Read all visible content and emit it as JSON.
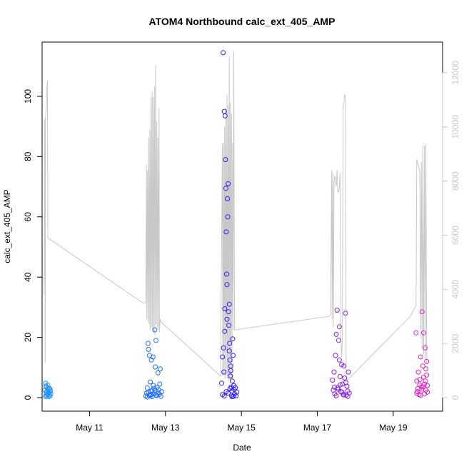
{
  "chart_data": {
    "type": "scatter",
    "title": "ATOM4 Northbound calc_ext_405_AMP",
    "xlabel": "Date",
    "ylabel": "calc_ext_405_AMP",
    "x_ticks": [
      "May 11",
      "May 13",
      "May 15",
      "May 17",
      "May 19"
    ],
    "x_tick_days": [
      11,
      13,
      15,
      17,
      19
    ],
    "xlim": [
      9.75,
      20.3
    ],
    "ylim": [
      -4.5,
      118
    ],
    "y_ticks": [
      0,
      20,
      40,
      60,
      80,
      100
    ],
    "y2lim": [
      -500,
      13130
    ],
    "y2_ticks": [
      0,
      2000,
      4000,
      6000,
      8000,
      10000,
      12000
    ],
    "grid": false,
    "legend": "none",
    "colors": {
      "axis": "#000000",
      "secondary_axis": "#c8c8c8",
      "secondary_line": "#c8c8c8"
    },
    "series": [
      {
        "color": "#1e90ff",
        "points": [
          [
            9.82,
            2.5
          ],
          [
            9.84,
            4.8
          ],
          [
            9.85,
            3.9
          ],
          [
            9.86,
            1.8
          ],
          [
            9.87,
            0.6
          ],
          [
            9.88,
            2.2
          ],
          [
            9.89,
            1.1
          ],
          [
            9.9,
            3.2
          ],
          [
            9.91,
            0.3
          ],
          [
            9.92,
            1.5
          ],
          [
            9.93,
            2.8
          ],
          [
            9.94,
            0.9
          ],
          [
            9.95,
            1.9
          ],
          [
            9.96,
            0.5
          ],
          [
            9.97,
            2.4
          ],
          [
            9.98,
            1.2
          ],
          [
            9.83,
            0.4
          ],
          [
            9.86,
            3.5
          ],
          [
            9.9,
            4.2
          ],
          [
            9.95,
            3.0
          ]
        ]
      },
      {
        "color": "#1e6eff",
        "points": [
          [
            12.48,
            0.5
          ],
          [
            12.5,
            1.5
          ],
          [
            12.52,
            3.2
          ],
          [
            12.54,
            18.0
          ],
          [
            12.55,
            16.0
          ],
          [
            12.57,
            0.8
          ],
          [
            12.58,
            14.0
          ],
          [
            12.6,
            5.2
          ],
          [
            12.62,
            2.1
          ],
          [
            12.63,
            12.5
          ],
          [
            12.65,
            0.3
          ],
          [
            12.67,
            13.5
          ],
          [
            12.68,
            4.0
          ],
          [
            12.7,
            1.2
          ],
          [
            12.72,
            22.5
          ],
          [
            12.73,
            10.2
          ],
          [
            12.75,
            19.0
          ],
          [
            12.77,
            0.7
          ],
          [
            12.78,
            3.4
          ],
          [
            12.8,
            8.2
          ],
          [
            12.82,
            2.6
          ],
          [
            12.84,
            1.1
          ],
          [
            12.86,
            9.5
          ],
          [
            12.88,
            0.4
          ],
          [
            12.9,
            2.0
          ],
          [
            12.55,
            1.8
          ],
          [
            12.6,
            0.6
          ],
          [
            12.65,
            2.5
          ],
          [
            12.7,
            3.1
          ],
          [
            12.75,
            0.9
          ],
          [
            12.8,
            1.6
          ],
          [
            12.85,
            4.5
          ],
          [
            12.52,
            0.2
          ],
          [
            12.62,
            1.0
          ],
          [
            12.72,
            2.3
          ]
        ]
      },
      {
        "color": "#2f1aff",
        "points": [
          [
            14.52,
            114.5
          ],
          [
            14.48,
            4.8
          ],
          [
            14.5,
            13.5
          ],
          [
            14.53,
            16.5
          ],
          [
            14.54,
            8.5
          ],
          [
            14.55,
            95.0
          ],
          [
            14.56,
            29.5
          ],
          [
            14.57,
            93.5
          ],
          [
            14.58,
            79.0
          ],
          [
            14.59,
            69.5
          ],
          [
            14.6,
            55.0
          ],
          [
            14.61,
            41.0
          ],
          [
            14.62,
            37.5
          ],
          [
            14.63,
            66.0
          ],
          [
            14.64,
            60.0
          ],
          [
            14.65,
            71.0
          ],
          [
            14.66,
            28.5
          ],
          [
            14.67,
            24.0
          ],
          [
            14.68,
            31.0
          ],
          [
            14.69,
            18.0
          ],
          [
            14.7,
            12.5
          ],
          [
            14.71,
            7.2
          ],
          [
            14.72,
            10.5
          ],
          [
            14.73,
            3.5
          ],
          [
            14.74,
            0.8
          ],
          [
            14.75,
            2.2
          ],
          [
            14.76,
            5.5
          ],
          [
            14.77,
            19.5
          ],
          [
            14.78,
            14.0
          ],
          [
            14.79,
            0.4
          ],
          [
            14.8,
            2.8
          ],
          [
            14.82,
            1.2
          ],
          [
            14.84,
            3.3
          ],
          [
            14.86,
            0.6
          ],
          [
            14.88,
            1.8
          ],
          [
            14.5,
            1.0
          ],
          [
            14.55,
            0.5
          ],
          [
            14.6,
            2.0
          ],
          [
            14.65,
            1.5
          ],
          [
            14.7,
            3.0
          ],
          [
            14.75,
            0.3
          ],
          [
            14.8,
            4.0
          ],
          [
            14.56,
            22.0
          ],
          [
            14.62,
            26.0
          ],
          [
            14.68,
            15.5
          ],
          [
            14.72,
            9.0
          ]
        ]
      },
      {
        "color": "#8a1ee8",
        "points": [
          [
            17.4,
            5.8
          ],
          [
            17.42,
            2.5
          ],
          [
            17.44,
            8.5
          ],
          [
            17.46,
            1.2
          ],
          [
            17.48,
            14.0
          ],
          [
            17.5,
            21.0
          ],
          [
            17.52,
            29.0
          ],
          [
            17.54,
            3.3
          ],
          [
            17.56,
            19.0
          ],
          [
            17.58,
            23.5
          ],
          [
            17.6,
            7.0
          ],
          [
            17.62,
            2.0
          ],
          [
            17.64,
            11.0
          ],
          [
            17.66,
            4.5
          ],
          [
            17.68,
            1.0
          ],
          [
            17.7,
            10.5
          ],
          [
            17.72,
            6.5
          ],
          [
            17.74,
            28.0
          ],
          [
            17.76,
            0.8
          ],
          [
            17.78,
            3.8
          ],
          [
            17.8,
            0.4
          ],
          [
            17.82,
            8.5
          ],
          [
            17.84,
            1.5
          ],
          [
            17.5,
            0.6
          ],
          [
            17.55,
            2.8
          ],
          [
            17.6,
            4.2
          ],
          [
            17.65,
            1.8
          ],
          [
            17.7,
            0.9
          ],
          [
            17.75,
            5.0
          ],
          [
            17.8,
            2.2
          ],
          [
            17.45,
            3.5
          ],
          [
            17.58,
            12.5
          ]
        ]
      },
      {
        "color": "#e81ec8",
        "points": [
          [
            19.6,
            21.5
          ],
          [
            19.62,
            5.5
          ],
          [
            19.64,
            2.0
          ],
          [
            19.66,
            8.5
          ],
          [
            19.68,
            1.0
          ],
          [
            19.7,
            6.0
          ],
          [
            19.72,
            13.5
          ],
          [
            19.74,
            3.5
          ],
          [
            19.76,
            28.5
          ],
          [
            19.78,
            10.5
          ],
          [
            19.8,
            21.5
          ],
          [
            19.82,
            4.5
          ],
          [
            19.84,
            16.5
          ],
          [
            19.86,
            2.5
          ],
          [
            19.88,
            7.5
          ],
          [
            19.9,
            1.8
          ],
          [
            19.65,
            3.0
          ],
          [
            19.7,
            4.2
          ],
          [
            19.75,
            2.8
          ],
          [
            19.8,
            6.8
          ],
          [
            19.85,
            5.5
          ],
          [
            19.9,
            4.0
          ],
          [
            19.62,
            1.5
          ],
          [
            19.72,
            0.8
          ],
          [
            19.78,
            3.6
          ],
          [
            19.82,
            1.2
          ],
          [
            19.86,
            9.5
          ],
          [
            19.88,
            12.0
          ]
        ]
      }
    ],
    "secondary_line": [
      [
        9.8,
        3800
      ],
      [
        9.82,
        10300
      ],
      [
        9.83,
        1300
      ],
      [
        9.84,
        10300
      ],
      [
        9.85,
        10600
      ],
      [
        9.86,
        10700
      ],
      [
        9.87,
        11200
      ],
      [
        9.88,
        11500
      ],
      [
        9.89,
        11700
      ],
      [
        9.9,
        5900
      ],
      [
        12.4,
        3500
      ],
      [
        12.48,
        3500
      ],
      [
        12.5,
        8600
      ],
      [
        12.51,
        2900
      ],
      [
        12.53,
        8400
      ],
      [
        12.54,
        2800
      ],
      [
        12.56,
        9600
      ],
      [
        12.57,
        2700
      ],
      [
        12.59,
        9900
      ],
      [
        12.6,
        2500
      ],
      [
        12.62,
        11100
      ],
      [
        12.63,
        2600
      ],
      [
        12.65,
        11300
      ],
      [
        12.66,
        2500
      ],
      [
        12.68,
        11100
      ],
      [
        12.69,
        2400
      ],
      [
        12.71,
        11500
      ],
      [
        12.72,
        2300
      ],
      [
        12.74,
        12300
      ],
      [
        12.75,
        2700
      ],
      [
        12.77,
        10200
      ],
      [
        12.78,
        2600
      ],
      [
        12.8,
        9600
      ],
      [
        12.81,
        2500
      ],
      [
        12.83,
        10700
      ],
      [
        12.84,
        2400
      ],
      [
        12.86,
        2900
      ],
      [
        12.88,
        2800
      ],
      [
        14.45,
        800
      ],
      [
        14.5,
        9400
      ],
      [
        14.51,
        800
      ],
      [
        14.53,
        9400
      ],
      [
        14.54,
        900
      ],
      [
        14.56,
        10000
      ],
      [
        14.57,
        700
      ],
      [
        14.59,
        10700
      ],
      [
        14.6,
        800
      ],
      [
        14.62,
        11200
      ],
      [
        14.63,
        700
      ],
      [
        14.65,
        10800
      ],
      [
        14.66,
        600
      ],
      [
        14.68,
        12600
      ],
      [
        14.69,
        700
      ],
      [
        14.71,
        10900
      ],
      [
        14.72,
        600
      ],
      [
        14.74,
        10500
      ],
      [
        14.75,
        700
      ],
      [
        14.77,
        9400
      ],
      [
        14.78,
        2500
      ],
      [
        14.8,
        12800
      ],
      [
        14.82,
        2500
      ],
      [
        17.3,
        3000
      ],
      [
        17.35,
        3050
      ],
      [
        17.38,
        8400
      ],
      [
        17.39,
        2900
      ],
      [
        17.41,
        8300
      ],
      [
        17.42,
        2600
      ],
      [
        17.44,
        7900
      ],
      [
        17.46,
        8200
      ],
      [
        17.48,
        8000
      ],
      [
        17.5,
        7800
      ],
      [
        17.52,
        8400
      ],
      [
        17.54,
        7600
      ],
      [
        17.56,
        7600
      ],
      [
        17.58,
        7800
      ],
      [
        17.6,
        8300
      ],
      [
        17.62,
        2200
      ],
      [
        17.64,
        1500
      ],
      [
        17.66,
        2100
      ],
      [
        17.68,
        10800
      ],
      [
        17.7,
        10900
      ],
      [
        17.72,
        11200
      ],
      [
        17.74,
        11100
      ],
      [
        17.76,
        600
      ],
      [
        19.45,
        3000
      ],
      [
        19.6,
        3400
      ],
      [
        19.62,
        8800
      ],
      [
        19.64,
        8700
      ],
      [
        19.66,
        8600
      ],
      [
        19.68,
        8500
      ],
      [
        19.7,
        8300
      ],
      [
        19.72,
        2200
      ],
      [
        19.74,
        8700
      ],
      [
        19.76,
        1800
      ],
      [
        19.78,
        9300
      ],
      [
        19.8,
        1600
      ],
      [
        19.82,
        9300
      ],
      [
        19.84,
        1400
      ],
      [
        19.86,
        9400
      ],
      [
        19.88,
        1300
      ]
    ]
  }
}
